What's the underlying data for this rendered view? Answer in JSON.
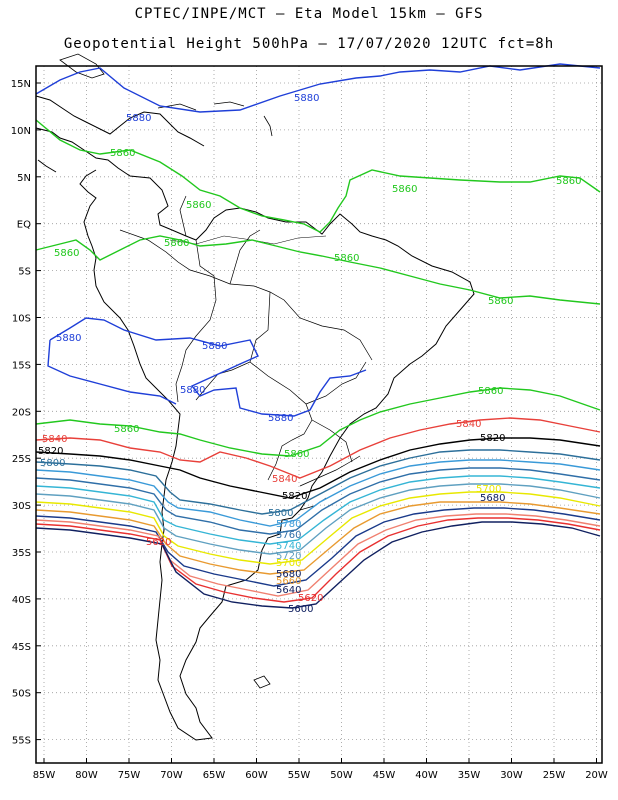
{
  "header": {
    "line1": "CPTEC/INPE/MCT –  Eta Model 15km – GFS",
    "line2": "Geopotential Height 500hPa – 17/07/2020 12UTC fct=8h"
  },
  "axes": {
    "lat_labels": [
      "15N",
      "10N",
      "5N",
      "EQ",
      "5S",
      "10S",
      "15S",
      "20S",
      "25S",
      "30S",
      "35S",
      "40S",
      "45S",
      "50S",
      "55S"
    ],
    "lon_labels": [
      "85W",
      "80W",
      "75W",
      "70W",
      "65W",
      "60W",
      "55W",
      "50W",
      "45W",
      "40W",
      "35W",
      "30W",
      "25W",
      "20W"
    ]
  },
  "contours": [
    {
      "value": "5880",
      "color": "#1f3fd8"
    },
    {
      "value": "5860",
      "color": "#22c81e"
    },
    {
      "value": "5840",
      "color": "#e8403a"
    },
    {
      "value": "5820",
      "color": "#000000"
    },
    {
      "value": "5800",
      "color": "#2c6f9a"
    },
    {
      "value": "5780",
      "color": "#3a9ad8"
    },
    {
      "value": "5760",
      "color": "#2f6fa8"
    },
    {
      "value": "5740",
      "color": "#35b5d5"
    },
    {
      "value": "5720",
      "color": "#5fa0c0"
    },
    {
      "value": "5700",
      "color": "#e8e800"
    },
    {
      "value": "5680",
      "color": "#e89a30"
    },
    {
      "value": "5660",
      "color": "#1a3a8a"
    },
    {
      "value": "5640",
      "color": "#f08070"
    },
    {
      "value": "5620",
      "color": "#e83030"
    },
    {
      "value": "5600",
      "color": "#102060"
    }
  ]
}
